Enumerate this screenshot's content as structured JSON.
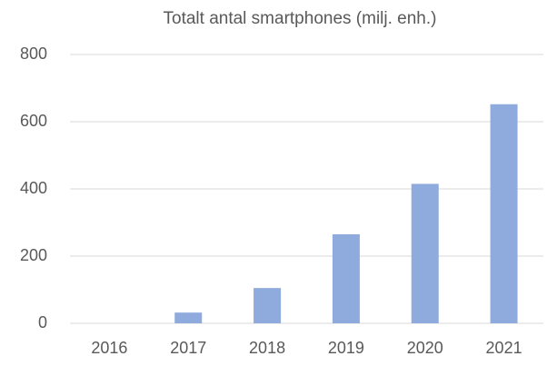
{
  "chart_data": {
    "type": "bar",
    "title": "Totalt antal smartphones (milj. enh.)",
    "categories": [
      "2016",
      "2017",
      "2018",
      "2019",
      "2020",
      "2021"
    ],
    "values": [
      0,
      32,
      105,
      265,
      415,
      652
    ],
    "color": "#8faadc",
    "ylim": [
      0,
      800
    ],
    "yticks": [
      0,
      200,
      400,
      600,
      800
    ],
    "grid": true
  }
}
